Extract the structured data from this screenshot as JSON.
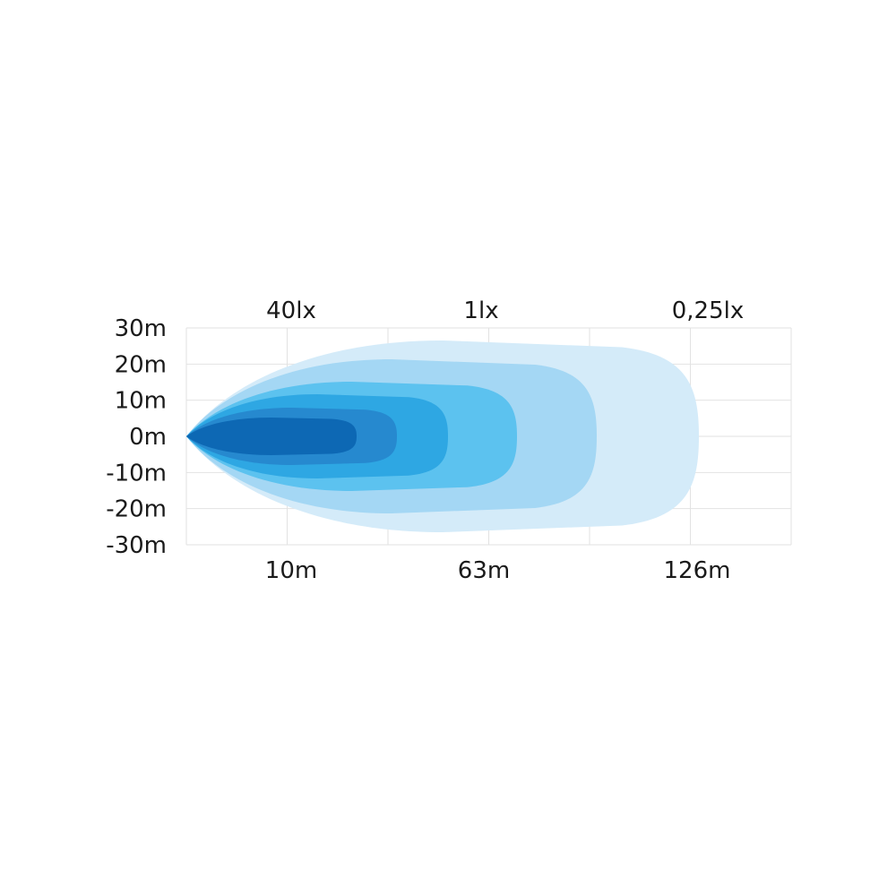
{
  "chart_data": {
    "type": "area",
    "title": "",
    "top_labels": [
      "40lx",
      "1lx",
      "0,25lx"
    ],
    "bottom_labels": [
      "10m",
      "63m",
      "126m"
    ],
    "y_tick_labels": [
      "30m",
      "20m",
      "10m",
      "0m",
      "-10m",
      "-20m",
      "-30m"
    ],
    "y_ticks": [
      30,
      20,
      10,
      0,
      -10,
      -20,
      -30
    ],
    "ylim": [
      -30,
      30
    ],
    "grid": true,
    "layers": [
      {
        "color": "#d4ebf9"
      },
      {
        "color": "#a4d7f4"
      },
      {
        "color": "#5cc2ef"
      },
      {
        "color": "#2ea7e3"
      },
      {
        "color": "#2689cf"
      },
      {
        "color": "#0d68b4"
      }
    ],
    "grid_color": "#e2e2e2"
  }
}
